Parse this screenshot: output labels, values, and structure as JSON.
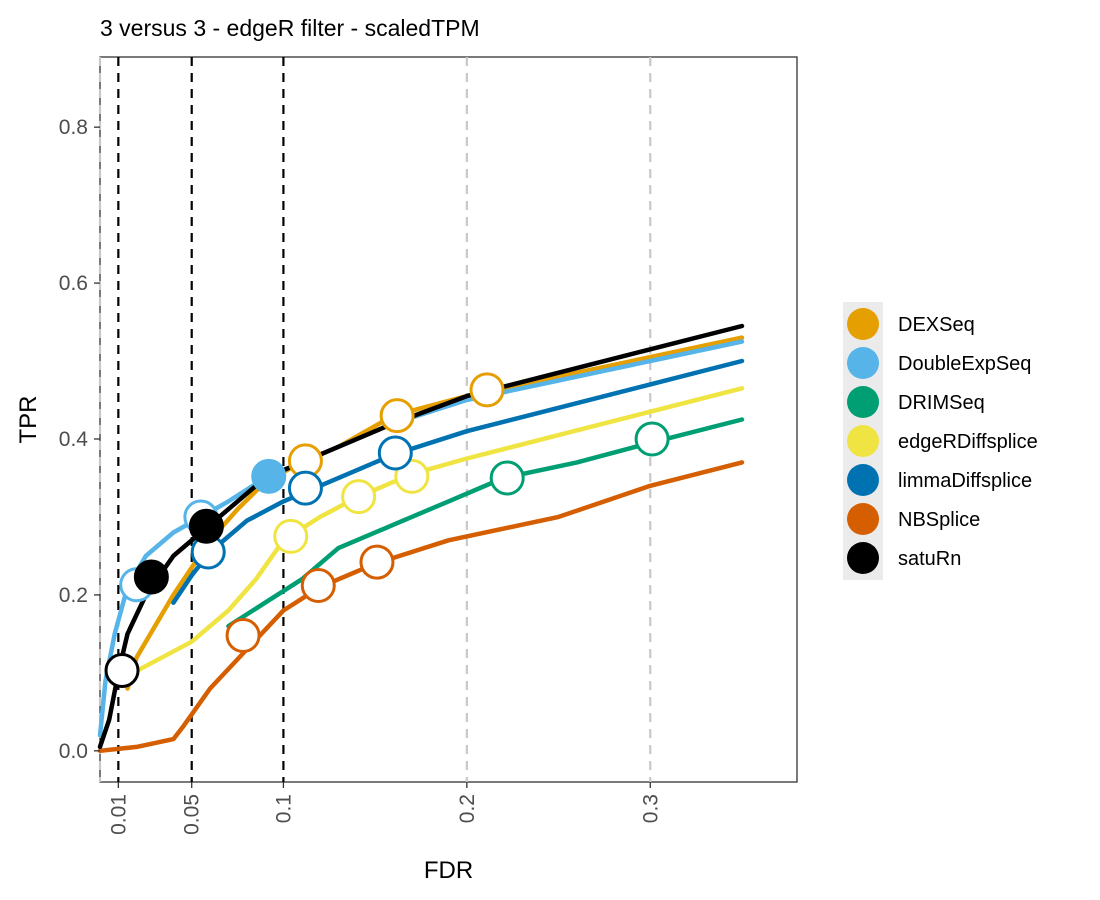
{
  "chart_data": {
    "type": "line",
    "title": "3 versus 3 - edgeR filter - scaledTPM",
    "xlabel": "FDR",
    "ylabel": "TPR",
    "xlim": [
      0.0,
      0.38
    ],
    "ylim": [
      -0.04,
      0.89
    ],
    "x_ticks": [
      {
        "value": 0.01,
        "label": "0.01"
      },
      {
        "value": 0.05,
        "label": "0.05"
      },
      {
        "value": 0.1,
        "label": "0.1"
      },
      {
        "value": 0.2,
        "label": "0.2"
      },
      {
        "value": 0.3,
        "label": "0.3"
      }
    ],
    "y_ticks": [
      {
        "value": 0.0,
        "label": "0.0"
      },
      {
        "value": 0.2,
        "label": "0.2"
      },
      {
        "value": 0.4,
        "label": "0.4"
      },
      {
        "value": 0.6,
        "label": "0.6"
      },
      {
        "value": 0.8,
        "label": "0.8"
      }
    ],
    "vlines_black_dashed": [
      0.01,
      0.05,
      0.1
    ],
    "vlines_grey_dashed": [
      0.0,
      0.2,
      0.3
    ],
    "grid": false,
    "legend_position": "right",
    "series": [
      {
        "name": "DEXSeq",
        "color": "#E69F00",
        "curve": [
          [
            0.015,
            0.08
          ],
          [
            0.02,
            0.12
          ],
          [
            0.03,
            0.16
          ],
          [
            0.04,
            0.2
          ],
          [
            0.05,
            0.235
          ],
          [
            0.06,
            0.27
          ],
          [
            0.075,
            0.31
          ],
          [
            0.09,
            0.345
          ],
          [
            0.11,
            0.37
          ],
          [
            0.13,
            0.39
          ],
          [
            0.16,
            0.43
          ],
          [
            0.2,
            0.455
          ],
          [
            0.25,
            0.48
          ],
          [
            0.3,
            0.505
          ],
          [
            0.35,
            0.53
          ]
        ],
        "points": [
          {
            "fdr_level": 0.1,
            "x": 0.112,
            "y": 0.372,
            "filled": false
          },
          {
            "fdr_level": 0.2,
            "x": 0.162,
            "y": 0.43,
            "filled": false
          },
          {
            "fdr_level": 0.3,
            "x": 0.211,
            "y": 0.463,
            "filled": false
          }
        ]
      },
      {
        "name": "DoubleExpSeq",
        "color": "#56B4E9",
        "curve": [
          [
            0.0,
            0.02
          ],
          [
            0.003,
            0.09
          ],
          [
            0.008,
            0.15
          ],
          [
            0.015,
            0.21
          ],
          [
            0.025,
            0.25
          ],
          [
            0.04,
            0.28
          ],
          [
            0.055,
            0.3
          ],
          [
            0.07,
            0.32
          ],
          [
            0.09,
            0.35
          ],
          [
            0.12,
            0.38
          ],
          [
            0.16,
            0.42
          ],
          [
            0.2,
            0.45
          ],
          [
            0.25,
            0.475
          ],
          [
            0.3,
            0.5
          ],
          [
            0.35,
            0.525
          ]
        ],
        "points": [
          {
            "fdr_level": 0.01,
            "x": 0.02,
            "y": 0.213,
            "filled": false
          },
          {
            "fdr_level": 0.05,
            "x": 0.055,
            "y": 0.3,
            "filled": false
          },
          {
            "fdr_level": 0.1,
            "x": 0.092,
            "y": 0.352,
            "filled": true
          }
        ]
      },
      {
        "name": "DRIMSeq",
        "color": "#009E73",
        "curve": [
          [
            0.07,
            0.16
          ],
          [
            0.09,
            0.19
          ],
          [
            0.11,
            0.22
          ],
          [
            0.13,
            0.26
          ],
          [
            0.16,
            0.29
          ],
          [
            0.19,
            0.32
          ],
          [
            0.22,
            0.35
          ],
          [
            0.26,
            0.37
          ],
          [
            0.3,
            0.395
          ],
          [
            0.35,
            0.425
          ]
        ],
        "points": [
          {
            "fdr_level": 0.2,
            "x": 0.222,
            "y": 0.35,
            "filled": false
          },
          {
            "fdr_level": 0.3,
            "x": 0.301,
            "y": 0.4,
            "filled": false
          }
        ]
      },
      {
        "name": "edgeRDiffsplice",
        "color": "#F0E442",
        "curve": [
          [
            0.01,
            0.09
          ],
          [
            0.03,
            0.115
          ],
          [
            0.05,
            0.14
          ],
          [
            0.07,
            0.18
          ],
          [
            0.085,
            0.22
          ],
          [
            0.1,
            0.27
          ],
          [
            0.12,
            0.3
          ],
          [
            0.14,
            0.325
          ],
          [
            0.17,
            0.355
          ],
          [
            0.2,
            0.375
          ],
          [
            0.25,
            0.405
          ],
          [
            0.3,
            0.435
          ],
          [
            0.35,
            0.465
          ]
        ],
        "points": [
          {
            "fdr_level": 0.05,
            "x": 0.104,
            "y": 0.275,
            "filled": false
          },
          {
            "fdr_level": 0.1,
            "x": 0.141,
            "y": 0.326,
            "filled": false
          },
          {
            "fdr_level": 0.2,
            "x": 0.17,
            "y": 0.352,
            "filled": false
          }
        ]
      },
      {
        "name": "limmaDiffsplice",
        "color": "#0072B2",
        "curve": [
          [
            0.04,
            0.19
          ],
          [
            0.05,
            0.225
          ],
          [
            0.06,
            0.255
          ],
          [
            0.08,
            0.295
          ],
          [
            0.1,
            0.32
          ],
          [
            0.12,
            0.34
          ],
          [
            0.14,
            0.36
          ],
          [
            0.16,
            0.38
          ],
          [
            0.2,
            0.41
          ],
          [
            0.25,
            0.44
          ],
          [
            0.3,
            0.47
          ],
          [
            0.35,
            0.5
          ]
        ],
        "points": [
          {
            "fdr_level": 0.05,
            "x": 0.059,
            "y": 0.255,
            "filled": false
          },
          {
            "fdr_level": 0.1,
            "x": 0.112,
            "y": 0.337,
            "filled": false
          },
          {
            "fdr_level": 0.2,
            "x": 0.161,
            "y": 0.382,
            "filled": false
          }
        ]
      },
      {
        "name": "NBSplice",
        "color": "#D55E00",
        "curve": [
          [
            0.0,
            0.0
          ],
          [
            0.02,
            0.005
          ],
          [
            0.04,
            0.015
          ],
          [
            0.045,
            0.03
          ],
          [
            0.06,
            0.08
          ],
          [
            0.08,
            0.13
          ],
          [
            0.1,
            0.18
          ],
          [
            0.12,
            0.21
          ],
          [
            0.15,
            0.24
          ],
          [
            0.19,
            0.27
          ],
          [
            0.25,
            0.3
          ],
          [
            0.3,
            0.34
          ],
          [
            0.35,
            0.37
          ]
        ],
        "points": [
          {
            "fdr_level": 0.05,
            "x": 0.078,
            "y": 0.148,
            "filled": false
          },
          {
            "fdr_level": 0.1,
            "x": 0.119,
            "y": 0.212,
            "filled": false
          },
          {
            "fdr_level": 0.2,
            "x": 0.151,
            "y": 0.242,
            "filled": false
          }
        ]
      },
      {
        "name": "satuRn",
        "color": "#000000",
        "curve": [
          [
            0.0,
            0.005
          ],
          [
            0.005,
            0.04
          ],
          [
            0.01,
            0.1
          ],
          [
            0.015,
            0.15
          ],
          [
            0.025,
            0.2
          ],
          [
            0.04,
            0.25
          ],
          [
            0.055,
            0.28
          ],
          [
            0.07,
            0.31
          ],
          [
            0.09,
            0.35
          ],
          [
            0.12,
            0.38
          ],
          [
            0.16,
            0.42
          ],
          [
            0.2,
            0.455
          ],
          [
            0.25,
            0.485
          ],
          [
            0.3,
            0.515
          ],
          [
            0.35,
            0.545
          ]
        ],
        "points": [
          {
            "fdr_level": 0.01,
            "x": 0.012,
            "y": 0.103,
            "filled": false
          },
          {
            "fdr_level": 0.05,
            "x": 0.028,
            "y": 0.223,
            "filled": true
          },
          {
            "fdr_level": 0.1,
            "x": 0.058,
            "y": 0.288,
            "filled": true
          }
        ]
      }
    ]
  }
}
